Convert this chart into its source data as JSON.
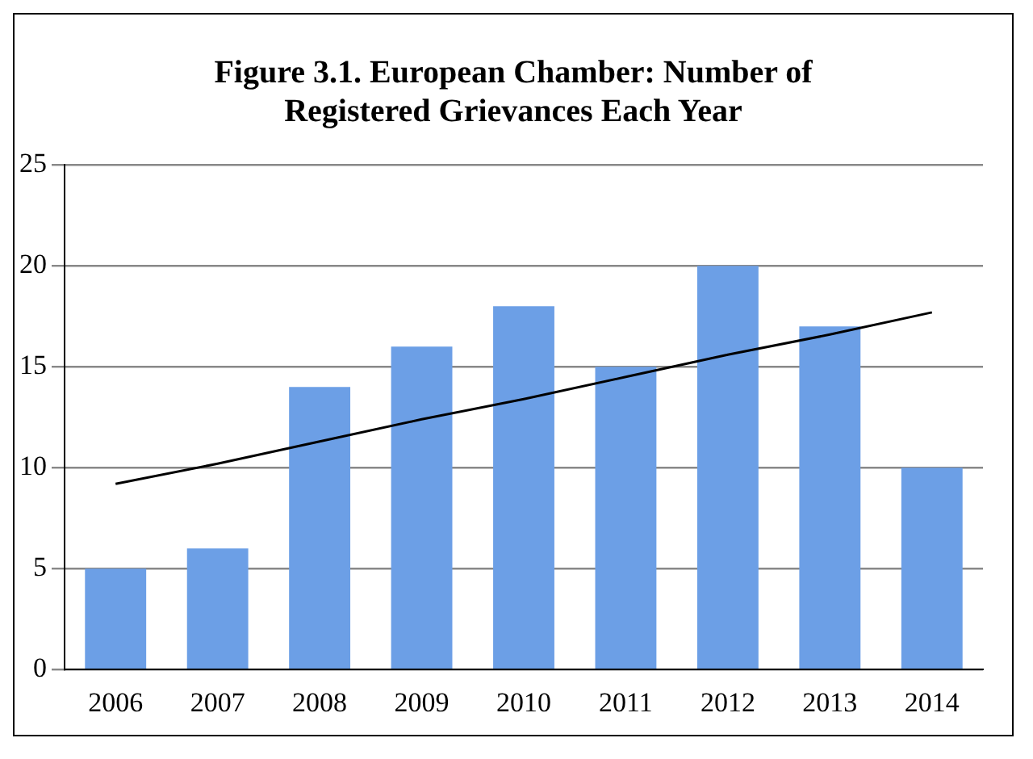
{
  "chart_data": {
    "type": "bar",
    "title": "Figure 3.1. European Chamber: Number of Registered Grievances Each Year",
    "categories": [
      "2006",
      "2007",
      "2008",
      "2009",
      "2010",
      "2011",
      "2012",
      "2013",
      "2014"
    ],
    "series": [
      {
        "color": "#6c9fe6",
        "values": [
          5,
          6,
          14,
          16,
          18,
          15,
          20,
          17,
          10
        ]
      },
      {
        "type": "line",
        "color": "#000000",
        "values": [
          9.2,
          10.2,
          11.3,
          12.4,
          13.4,
          14.5,
          15.6,
          16.6,
          17.7
        ]
      }
    ],
    "ylim": [
      0,
      25
    ],
    "yticks": [
      0,
      5,
      10,
      15,
      20,
      25
    ],
    "grid": "y",
    "legend": false,
    "marker": "none"
  }
}
